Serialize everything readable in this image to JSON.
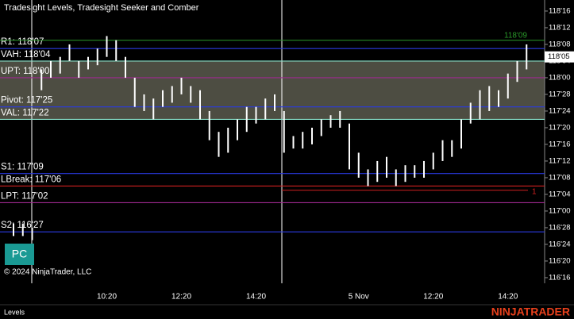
{
  "title": "Tradesight Levels, Tradesight Seeker and Comber",
  "copyright": "© 2024 NinjaTrader, LLC",
  "button": "PC",
  "tab": "Levels",
  "logo": "NINJATRADER",
  "chart_data": {
    "type": "ohlc",
    "color": "#ffffff",
    "categories": [
      null,
      null,
      null,
      null,
      null,
      null,
      null,
      null,
      null,
      null,
      "10:20",
      null,
      null,
      null,
      null,
      null,
      null,
      null,
      "12:20",
      null,
      null,
      null,
      null,
      null,
      null,
      null,
      "14:20",
      null,
      null,
      null,
      null,
      null,
      null,
      null,
      null,
      null,
      null,
      "5 Nov",
      null,
      null,
      null,
      null,
      null,
      null,
      null,
      "12:20",
      null,
      null,
      null,
      null,
      null,
      null,
      null,
      "14:20",
      null,
      null
    ],
    "high": [
      116.90625,
      116.90625,
      116.875,
      118.0625,
      118.125,
      118.15625,
      118.25,
      118.125,
      118.15625,
      118.21875,
      118.3125,
      118.28125,
      118.15625,
      118,
      117.875,
      117.84375,
      117.90625,
      117.9375,
      118,
      117.9375,
      117.90625,
      117.75,
      117.59375,
      117.625,
      117.6875,
      117.78125,
      117.78125,
      117.84375,
      117.875,
      117.75,
      117.5625,
      117.59375,
      117.625,
      117.6875,
      117.71875,
      117.75,
      117.65625,
      117.4375,
      117.3125,
      117.375,
      117.40625,
      117.3125,
      117.34375,
      117.34375,
      117.375,
      117.4375,
      117.53125,
      117.53125,
      117.6875,
      117.8125,
      117.90625,
      117.9375,
      117.90625,
      118.03125,
      118.125,
      118.25
    ],
    "low": [
      116.8125,
      116.8125,
      116.78125,
      117.90625,
      118,
      118.03125,
      118.125,
      118,
      118.0625,
      118.09375,
      118.15625,
      118.125,
      118,
      117.78125,
      117.75,
      117.6875,
      117.78125,
      117.8125,
      117.875,
      117.8125,
      117.6875,
      117.53125,
      117.40625,
      117.4375,
      117.53125,
      117.59375,
      117.65625,
      117.6875,
      117.75,
      117.4375,
      117.46875,
      117.46875,
      117.5,
      117.5625,
      117.625,
      117.625,
      117.3125,
      117.25,
      117.1875,
      117.21875,
      117.25,
      117.1875,
      117.21875,
      117.25,
      117.25,
      117.3125,
      117.375,
      117.40625,
      117.46875,
      117.65625,
      117.6875,
      117.75,
      117.78125,
      117.84375,
      117.96875,
      118.0625
    ],
    "ylim": [
      116.458,
      118.583
    ],
    "yticks": [
      {
        "value": 118.5,
        "label": "118'16"
      },
      {
        "value": 118.375,
        "label": "118'12"
      },
      {
        "value": 118.25,
        "label": "118'08"
      },
      {
        "value": 118.125,
        "label": "118'04"
      },
      {
        "value": 118,
        "label": "118'00"
      },
      {
        "value": 117.875,
        "label": "117'28"
      },
      {
        "value": 117.75,
        "label": "117'24"
      },
      {
        "value": 117.625,
        "label": "117'20"
      },
      {
        "value": 117.5,
        "label": "117'16"
      },
      {
        "value": 117.375,
        "label": "117'12"
      },
      {
        "value": 117.25,
        "label": "117'08"
      },
      {
        "value": 117.125,
        "label": "117'04"
      },
      {
        "value": 117,
        "label": "117'00"
      },
      {
        "value": 116.875,
        "label": "116'28"
      },
      {
        "value": 116.75,
        "label": "116'24"
      },
      {
        "value": 116.625,
        "label": "116'20"
      },
      {
        "value": 116.5,
        "label": "116'16"
      }
    ],
    "value_area": {
      "high": 118.125,
      "low": 117.6875,
      "color": "#5a5a4e"
    },
    "levels": [
      {
        "label": "R1: 118'07",
        "value": 118.21875,
        "color": "#2a3ae0"
      },
      {
        "label": "VAH: 118'04",
        "value": 118.125,
        "color": "#86e0c8"
      },
      {
        "label": "UPT: 118'00",
        "value": 118,
        "color": "#a02a90"
      },
      {
        "label": "Pivot: 117'25",
        "value": 117.78125,
        "color": "#2a3ae0"
      },
      {
        "label": "VAL: 117'22",
        "value": 117.6875,
        "color": "#86e0c8"
      },
      {
        "label": "S1: 117'09",
        "value": 117.28125,
        "color": "#2a3ae0"
      },
      {
        "label": "LBreak: 117'06",
        "value": 117.1875,
        "color": "#d02020"
      },
      {
        "label": "LPT: 117'02",
        "value": 117.0625,
        "color": "#a02a90"
      },
      {
        "label": "S2: 116'27",
        "value": 116.84375,
        "color": "#2a3ae0"
      }
    ],
    "high_marker": {
      "label": "118'09",
      "value": 118.28125,
      "color": "#2a9a2a"
    },
    "signal": {
      "label": "1",
      "value": 117.15625,
      "color": "#d02020"
    },
    "current_price": {
      "label": "118'05",
      "value": 118.15625
    }
  }
}
